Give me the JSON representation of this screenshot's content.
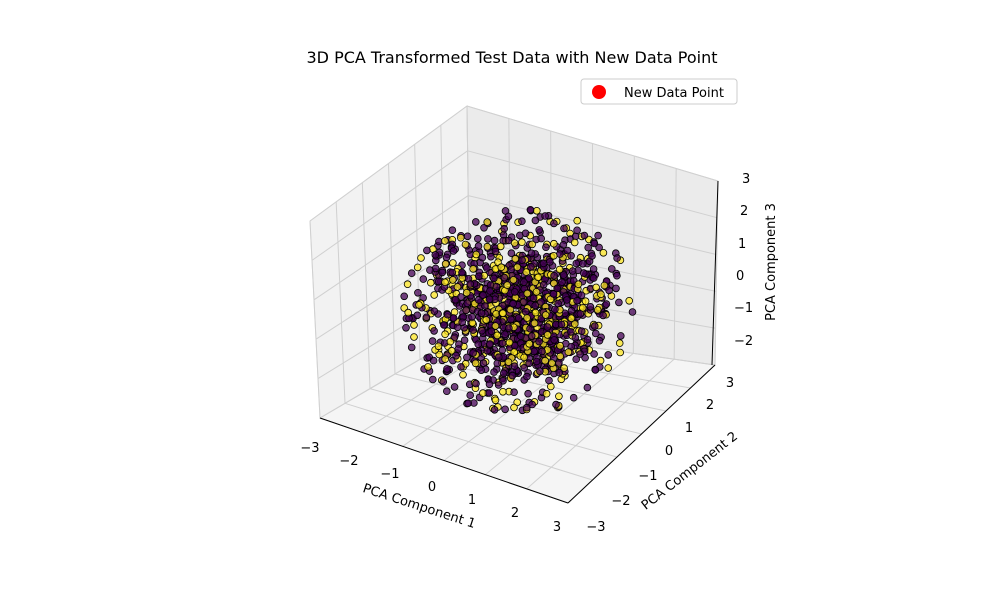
{
  "chart_data": {
    "type": "scatter",
    "projection": "3d",
    "title": "3D PCA Transformed Test Data with New Data Point",
    "xlabel": "PCA Component 1",
    "ylabel": "PCA Component 2",
    "zlabel": "PCA Component 3",
    "xlim": [
      -3,
      3
    ],
    "ylim": [
      -3,
      3
    ],
    "zlim": [
      -2.5,
      3
    ],
    "x_ticks": [
      "−3",
      "−2",
      "−1",
      "0",
      "1",
      "2",
      "3"
    ],
    "y_ticks": [
      "−3",
      "−2",
      "−1",
      "0",
      "1",
      "2",
      "3"
    ],
    "z_ticks": [
      "−2",
      "−1",
      "0",
      "1",
      "2",
      "3"
    ],
    "grid": true,
    "legend_position": "top-right",
    "legend": [
      {
        "label": "New Data Point",
        "color": "#ff0000"
      }
    ],
    "series": [
      {
        "class": "0",
        "color": "#440154",
        "edge_color": "#000000",
        "x_mean": 0,
        "y_mean": 0,
        "z_mean": 0,
        "spread": 0.95
      },
      {
        "class": "1",
        "color": "#fde725",
        "edge_color": "#000000",
        "x_mean": 0,
        "y_mean": 0,
        "z_mean": 0,
        "spread": 0.95
      }
    ]
  }
}
